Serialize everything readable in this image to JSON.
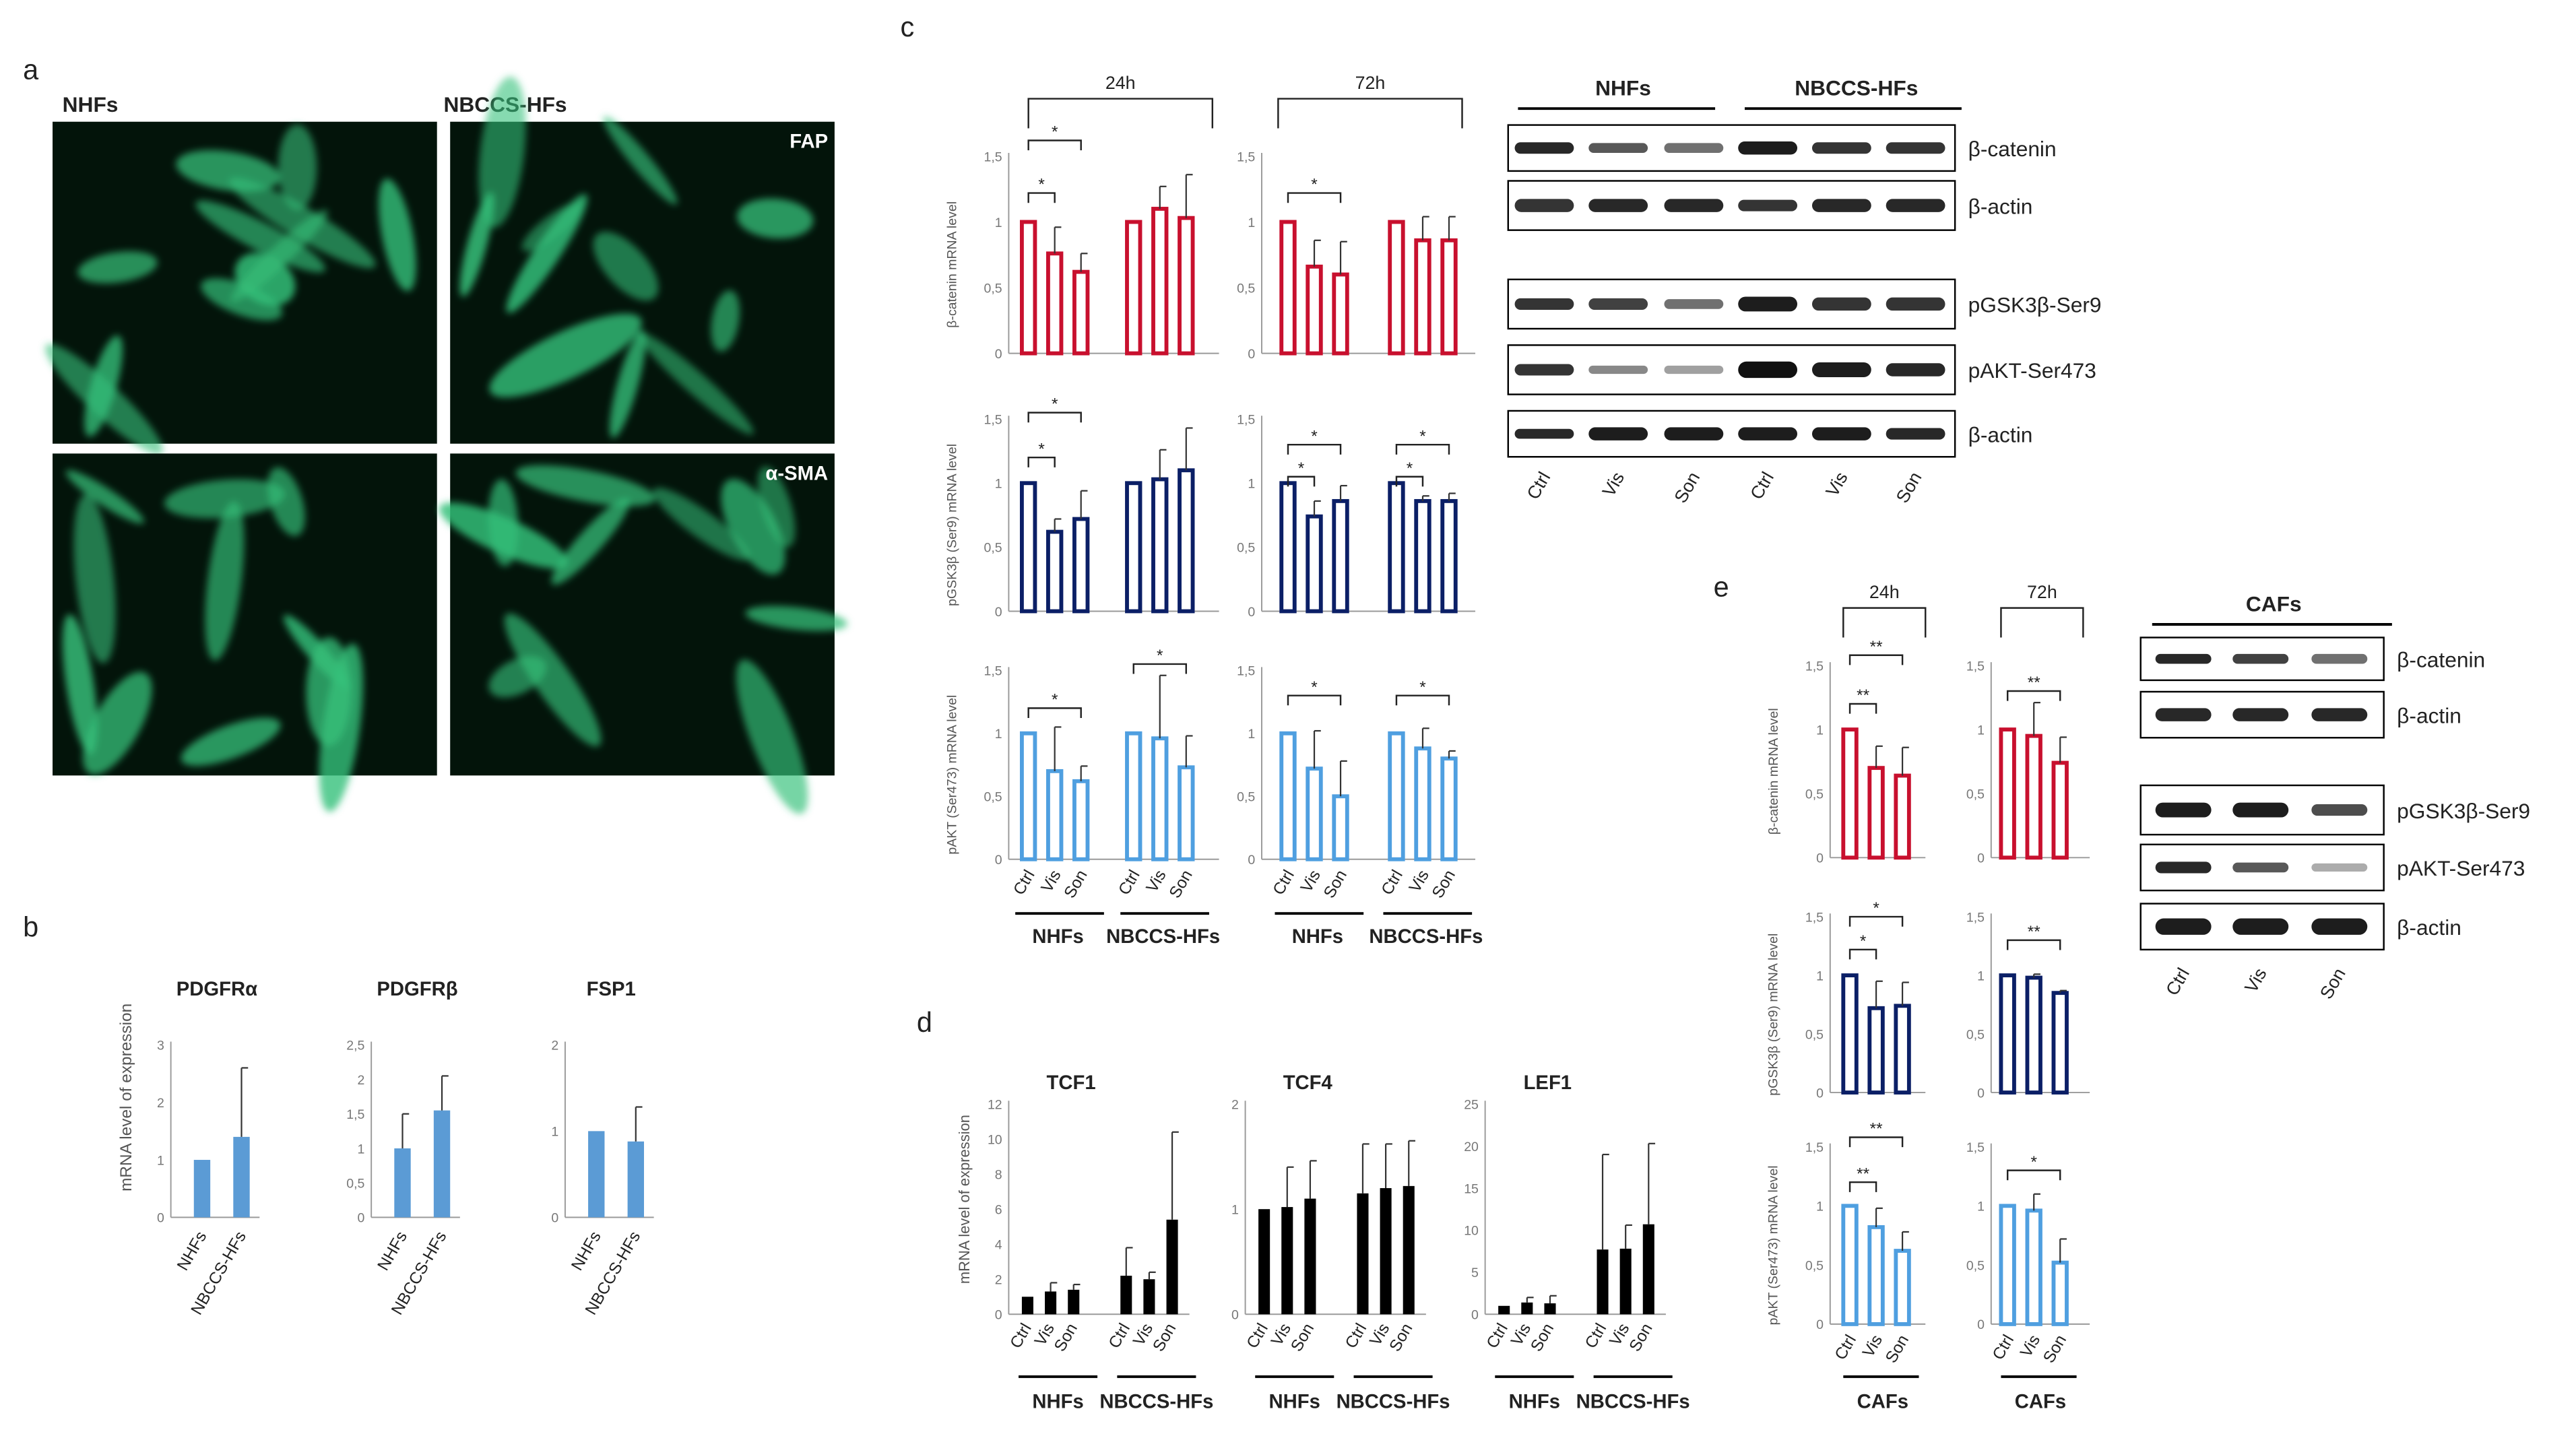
{
  "panels": {
    "a": "a",
    "b": "b",
    "c": "c",
    "d": "d",
    "e": "e"
  },
  "micrographs": {
    "col_labels": [
      "NHFs",
      "NBCCS-HFs"
    ],
    "row_labels": [
      "FAP",
      "α-SMA"
    ]
  },
  "colors": {
    "red": "#c8102e",
    "navy": "#0b1f66",
    "light_blue": "#4f9fe0",
    "bar_b": "#5b9bd5",
    "black": "#000000",
    "cell_green": "#35c07a"
  },
  "panel_b": {
    "ylabel": "mRNA level of expression",
    "categories": [
      "NHFs",
      "NBCCS-HFs"
    ],
    "charts": [
      {
        "title": "PDGFRα",
        "ticks": [
          "0",
          "1",
          "2",
          "3"
        ],
        "ymax": 3
      },
      {
        "title": "PDGFRβ",
        "ticks": [
          "0",
          "0,5",
          "1",
          "1,5",
          "2",
          "2,5"
        ],
        "ymax": 2.5
      },
      {
        "title": "FSP1",
        "ticks": [
          "0",
          "1",
          "2"
        ],
        "ymax": 2
      }
    ]
  },
  "panel_c": {
    "time_labels": [
      "24h",
      "72h"
    ],
    "row_ylabels": [
      "β-catenin mRNA level",
      "pGSK3β (Ser9) mRNA level",
      "pAKT (Ser473) mRNA level"
    ],
    "ticks": [
      "0",
      "0,5",
      "1",
      "1,5"
    ],
    "conditions": [
      "Ctrl",
      "Vis",
      "Son"
    ],
    "group_labels": [
      "NHFs",
      "NBCCS-HFs",
      "NHFs",
      "NBCCS-HFs"
    ],
    "star": "*"
  },
  "panel_d": {
    "ylabel": "mRNA level of expression",
    "conditions": [
      "Ctrl",
      "Vis",
      "Son"
    ],
    "group_labels": [
      "NHFs",
      "NBCCS-HFs"
    ],
    "charts": [
      {
        "title": "TCF1",
        "ticks": [
          "0",
          "2",
          "4",
          "6",
          "8",
          "10",
          "12"
        ],
        "ymax": 12
      },
      {
        "title": "TCF4",
        "ticks": [
          "0",
          "1",
          "2"
        ],
        "ymax": 2
      },
      {
        "title": "LEF1",
        "ticks": [
          "0",
          "5",
          "10",
          "15",
          "20",
          "25"
        ],
        "ymax": 25
      }
    ]
  },
  "panel_e": {
    "time_labels": [
      "24h",
      "72h"
    ],
    "row_ylabels": [
      "β-catenin mRNA level",
      "pGSK3β (Ser9) mRNA level",
      "pAKT (Ser473) mRNA level"
    ],
    "ticks": [
      "0",
      "0,5",
      "1",
      "1,5"
    ],
    "conditions": [
      "Ctrl",
      "Vis",
      "Son"
    ],
    "group_label": "CAFs",
    "star1": "*",
    "star2": "**"
  },
  "blots_c": {
    "headers": [
      "NHFs",
      "NBCCS-HFs"
    ],
    "labels": [
      "β-catenin",
      "β-actin",
      "pGSK3β-Ser9",
      "pAKT-Ser473",
      "β-actin"
    ],
    "lanes": [
      "Ctrl",
      "Vis",
      "Son",
      "Ctrl",
      "Vis",
      "Son"
    ]
  },
  "blots_e": {
    "header": "CAFs",
    "labels": [
      "β-catenin",
      "β-actin",
      "pGSK3β-Ser9",
      "pAKT-Ser473",
      "β-actin"
    ],
    "lanes": [
      "Ctrl",
      "Vis",
      "Son"
    ]
  },
  "chart_data": [
    {
      "type": "bar",
      "panel": "b",
      "title": "PDGFRα",
      "ylabel": "mRNA level of expression",
      "categories": [
        "NHFs",
        "NBCCS-HFs"
      ],
      "values": [
        1.0,
        1.4
      ],
      "errors": [
        0,
        1.2
      ],
      "ylim": [
        0,
        3
      ]
    },
    {
      "type": "bar",
      "panel": "b",
      "title": "PDGFRβ",
      "categories": [
        "NHFs",
        "NBCCS-HFs"
      ],
      "values": [
        1.0,
        1.55
      ],
      "errors": [
        0.5,
        0.5
      ],
      "ylim": [
        0,
        2.5
      ]
    },
    {
      "type": "bar",
      "panel": "b",
      "title": "FSP1",
      "categories": [
        "NHFs",
        "NBCCS-HFs"
      ],
      "values": [
        1.0,
        0.88
      ],
      "errors": [
        0,
        0.4
      ],
      "ylim": [
        0,
        2
      ]
    },
    {
      "type": "bar",
      "panel": "c",
      "ylabel": "β-catenin mRNA level",
      "ylim": [
        0,
        1.5
      ],
      "series": [
        {
          "name": "NHFs",
          "time": "24h",
          "categories": [
            "Ctrl",
            "Vis",
            "Son"
          ],
          "values": [
            1.0,
            0.76,
            0.62
          ],
          "errors": [
            0,
            0.2,
            0.14
          ]
        },
        {
          "name": "NBCCS-HFs",
          "time": "24h",
          "categories": [
            "Ctrl",
            "Vis",
            "Son"
          ],
          "values": [
            1.0,
            1.1,
            1.03
          ],
          "errors": [
            0,
            0.17,
            0.33
          ]
        },
        {
          "name": "NHFs",
          "time": "72h",
          "categories": [
            "Ctrl",
            "Vis",
            "Son"
          ],
          "values": [
            1.0,
            0.66,
            0.6
          ],
          "errors": [
            0,
            0.2,
            0.25
          ]
        },
        {
          "name": "NBCCS-HFs",
          "time": "72h",
          "categories": [
            "Ctrl",
            "Vis",
            "Son"
          ],
          "values": [
            1.0,
            0.86,
            0.86
          ],
          "errors": [
            0,
            0.18,
            0.18
          ]
        }
      ]
    },
    {
      "type": "bar",
      "panel": "c",
      "ylabel": "pGSK3β (Ser9) mRNA level",
      "ylim": [
        0,
        1.5
      ],
      "series": [
        {
          "name": "NHFs",
          "time": "24h",
          "categories": [
            "Ctrl",
            "Vis",
            "Son"
          ],
          "values": [
            1.0,
            0.62,
            0.72
          ],
          "errors": [
            0,
            0.1,
            0.22
          ]
        },
        {
          "name": "NBCCS-HFs",
          "time": "24h",
          "categories": [
            "Ctrl",
            "Vis",
            "Son"
          ],
          "values": [
            1.0,
            1.03,
            1.1
          ],
          "errors": [
            0,
            0.23,
            0.33
          ]
        },
        {
          "name": "NHFs",
          "time": "72h",
          "categories": [
            "Ctrl",
            "Vis",
            "Son"
          ],
          "values": [
            1.0,
            0.74,
            0.86
          ],
          "errors": [
            0,
            0.12,
            0.12
          ]
        },
        {
          "name": "NBCCS-HFs",
          "time": "72h",
          "categories": [
            "Ctrl",
            "Vis",
            "Son"
          ],
          "values": [
            1.0,
            0.86,
            0.86
          ],
          "errors": [
            0,
            0.04,
            0.06
          ]
        }
      ]
    },
    {
      "type": "bar",
      "panel": "c",
      "ylabel": "pAKT (Ser473) mRNA level",
      "ylim": [
        0,
        1.5
      ],
      "series": [
        {
          "name": "NHFs",
          "time": "24h",
          "categories": [
            "Ctrl",
            "Vis",
            "Son"
          ],
          "values": [
            1.0,
            0.7,
            0.62
          ],
          "errors": [
            0,
            0.35,
            0.12
          ]
        },
        {
          "name": "NBCCS-HFs",
          "time": "24h",
          "categories": [
            "Ctrl",
            "Vis",
            "Son"
          ],
          "values": [
            1.0,
            0.96,
            0.73
          ],
          "errors": [
            0,
            0.5,
            0.25
          ]
        },
        {
          "name": "NHFs",
          "time": "72h",
          "categories": [
            "Ctrl",
            "Vis",
            "Son"
          ],
          "values": [
            1.0,
            0.72,
            0.5
          ],
          "errors": [
            0,
            0.3,
            0.28
          ]
        },
        {
          "name": "NBCCS-HFs",
          "time": "72h",
          "categories": [
            "Ctrl",
            "Vis",
            "Son"
          ],
          "values": [
            1.0,
            0.88,
            0.8
          ],
          "errors": [
            0,
            0.16,
            0.06
          ]
        }
      ]
    },
    {
      "type": "bar",
      "panel": "d",
      "title": "TCF1",
      "ylabel": "mRNA level of expression",
      "ylim": [
        0,
        12
      ],
      "series": [
        {
          "name": "NHFs",
          "categories": [
            "Ctrl",
            "Vis",
            "Son"
          ],
          "values": [
            1.0,
            1.3,
            1.4
          ],
          "errors": [
            0,
            0.5,
            0.3
          ]
        },
        {
          "name": "NBCCS-HFs",
          "categories": [
            "Ctrl",
            "Vis",
            "Son"
          ],
          "values": [
            2.2,
            2.0,
            5.4
          ],
          "errors": [
            1.6,
            0.4,
            5.0
          ]
        }
      ]
    },
    {
      "type": "bar",
      "panel": "d",
      "title": "TCF4",
      "ylim": [
        0,
        2
      ],
      "series": [
        {
          "name": "NHFs",
          "categories": [
            "Ctrl",
            "Vis",
            "Son"
          ],
          "values": [
            1.0,
            1.02,
            1.1
          ],
          "errors": [
            0,
            0.38,
            0.36
          ]
        },
        {
          "name": "NBCCS-HFs",
          "categories": [
            "Ctrl",
            "Vis",
            "Son"
          ],
          "values": [
            1.15,
            1.2,
            1.22
          ],
          "errors": [
            0.47,
            0.42,
            0.43
          ]
        }
      ]
    },
    {
      "type": "bar",
      "panel": "d",
      "title": "LEF1",
      "ylim": [
        0,
        25
      ],
      "series": [
        {
          "name": "NHFs",
          "categories": [
            "Ctrl",
            "Vis",
            "Son"
          ],
          "values": [
            1.0,
            1.4,
            1.3
          ],
          "errors": [
            0,
            0.6,
            0.9
          ]
        },
        {
          "name": "NBCCS-HFs",
          "categories": [
            "Ctrl",
            "Vis",
            "Son"
          ],
          "values": [
            7.7,
            7.8,
            10.7
          ],
          "errors": [
            11.3,
            2.8,
            9.6
          ]
        }
      ]
    },
    {
      "type": "bar",
      "panel": "e",
      "ylabel": "β-catenin mRNA level",
      "ylim": [
        0,
        1.5
      ],
      "series": [
        {
          "name": "CAFs",
          "time": "24h",
          "categories": [
            "Ctrl",
            "Vis",
            "Son"
          ],
          "values": [
            1.0,
            0.7,
            0.64
          ],
          "errors": [
            0,
            0.17,
            0.22
          ]
        },
        {
          "name": "CAFs",
          "time": "72h",
          "categories": [
            "Ctrl",
            "Vis",
            "Son"
          ],
          "values": [
            1.0,
            0.95,
            0.74
          ],
          "errors": [
            0,
            0.26,
            0.2
          ]
        }
      ]
    },
    {
      "type": "bar",
      "panel": "e",
      "ylabel": "pGSK3β (Ser9) mRNA level",
      "ylim": [
        0,
        1.5
      ],
      "series": [
        {
          "name": "CAFs",
          "time": "24h",
          "categories": [
            "Ctrl",
            "Vis",
            "Son"
          ],
          "values": [
            1.0,
            0.72,
            0.74
          ],
          "errors": [
            0,
            0.23,
            0.2
          ]
        },
        {
          "name": "CAFs",
          "time": "72h",
          "categories": [
            "Ctrl",
            "Vis",
            "Son"
          ],
          "values": [
            1.0,
            0.98,
            0.85
          ],
          "errors": [
            0,
            0.03,
            0.02
          ]
        }
      ]
    },
    {
      "type": "bar",
      "panel": "e",
      "ylabel": "pAKT (Ser473) mRNA level",
      "ylim": [
        0,
        1.5
      ],
      "series": [
        {
          "name": "CAFs",
          "time": "24h",
          "categories": [
            "Ctrl",
            "Vis",
            "Son"
          ],
          "values": [
            1.0,
            0.82,
            0.62
          ],
          "errors": [
            0,
            0.16,
            0.16
          ]
        },
        {
          "name": "CAFs",
          "time": "72h",
          "categories": [
            "Ctrl",
            "Vis",
            "Son"
          ],
          "values": [
            1.0,
            0.96,
            0.52
          ],
          "errors": [
            0,
            0.14,
            0.2
          ]
        }
      ]
    }
  ]
}
